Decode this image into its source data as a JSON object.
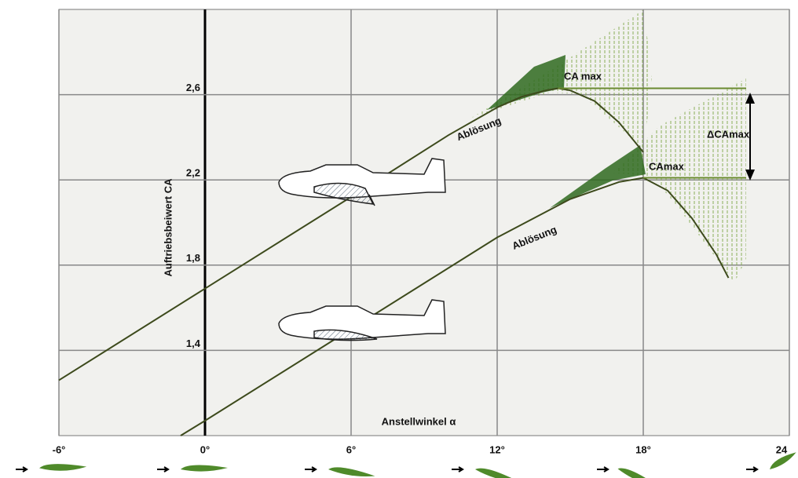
{
  "chart_data": {
    "type": "line",
    "x_label": "Anstellwinkel α",
    "y_label": "Auftriebsbeiwert CA",
    "xlim": [
      -6,
      24
    ],
    "xticks": [
      {
        "value": -6,
        "label": "-6°"
      },
      {
        "value": 0,
        "label": "0°"
      },
      {
        "value": 6,
        "label": "6°"
      },
      {
        "value": 12,
        "label": "12°"
      },
      {
        "value": 18,
        "label": "18°"
      },
      {
        "value": 24,
        "label": "24"
      }
    ],
    "ylim": [
      1.0,
      3.0
    ],
    "yticks": [
      {
        "value": 1.4,
        "label": "1,4"
      },
      {
        "value": 1.8,
        "label": "1,8"
      },
      {
        "value": 2.2,
        "label": "2,2"
      },
      {
        "value": 2.6,
        "label": "2,6"
      }
    ],
    "grid": true,
    "series": [
      {
        "color": "#3d4a1c",
        "x": [
          -6,
          0,
          6,
          10,
          12,
          13,
          14,
          14.5,
          15,
          16,
          17,
          18
        ],
        "values": [
          1.26,
          1.69,
          2.12,
          2.41,
          2.54,
          2.59,
          2.62,
          2.63,
          2.62,
          2.57,
          2.47,
          2.33
        ]
      },
      {
        "color": "#3d4a1c",
        "x": [
          -1,
          0,
          6,
          12,
          15,
          17,
          18,
          19,
          20,
          21,
          21.5
        ],
        "values": [
          1.0,
          1.07,
          1.5,
          1.93,
          2.11,
          2.19,
          2.21,
          2.15,
          2.02,
          1.85,
          1.74
        ]
      }
    ],
    "annotations": [
      "Ablösung",
      "Ablösung",
      "CA max",
      "CAmax",
      "ΔCAmax"
    ]
  }
}
